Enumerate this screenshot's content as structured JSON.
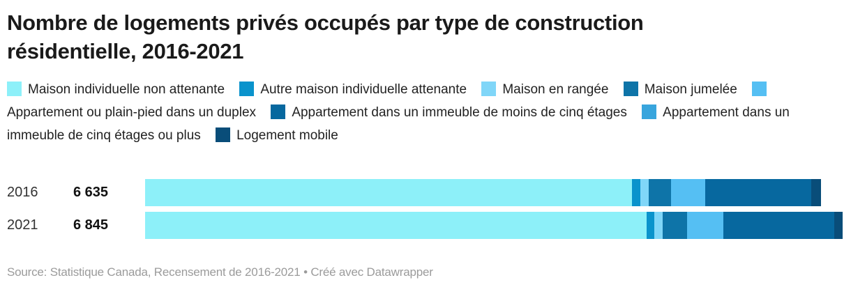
{
  "header": {
    "title": "Nombre de logements privés occupés par type de construction résidentielle, 2016-2021"
  },
  "footer": {
    "source": "Source: Statistique Canada, Recensement de 2016-2021 • Créé avec Datawrapper"
  },
  "chart_data": {
    "type": "bar",
    "orientation": "horizontal",
    "stacked": true,
    "grid": false,
    "legend_position": "top",
    "title": "Nombre de logements privés occupés par type de construction résidentielle, 2016-2021",
    "categories": [
      "2016",
      "2021"
    ],
    "category_totals": [
      6635,
      6845
    ],
    "category_totals_display": [
      "6 635",
      "6 845"
    ],
    "xlim": [
      0,
      6845
    ],
    "series": [
      {
        "name": "Maison individuelle non attenante",
        "color": "#8df0f9",
        "values": [
          4780,
          4920
        ]
      },
      {
        "name": "Autre maison individuelle attenante",
        "color": "#0a93cc",
        "values": [
          80,
          80
        ]
      },
      {
        "name": "Maison en rangée",
        "color": "#80d6f8",
        "values": [
          80,
          80
        ]
      },
      {
        "name": "Maison jumelée",
        "color": "#0e74a8",
        "values": [
          220,
          240
        ]
      },
      {
        "name": "Appartement ou plain-pied dans un duplex",
        "color": "#55bff3",
        "values": [
          340,
          355
        ]
      },
      {
        "name": "Appartement dans un immeuble de moins de cinq étages",
        "color": "#07689f",
        "values": [
          1035,
          1090
        ]
      },
      {
        "name": "Appartement dans un immeuble de cinq étages ou plus",
        "color": "#38a5dd",
        "values": [
          0,
          0
        ]
      },
      {
        "name": "Logement mobile",
        "color": "#094d79",
        "values": [
          100,
          80
        ]
      }
    ]
  }
}
